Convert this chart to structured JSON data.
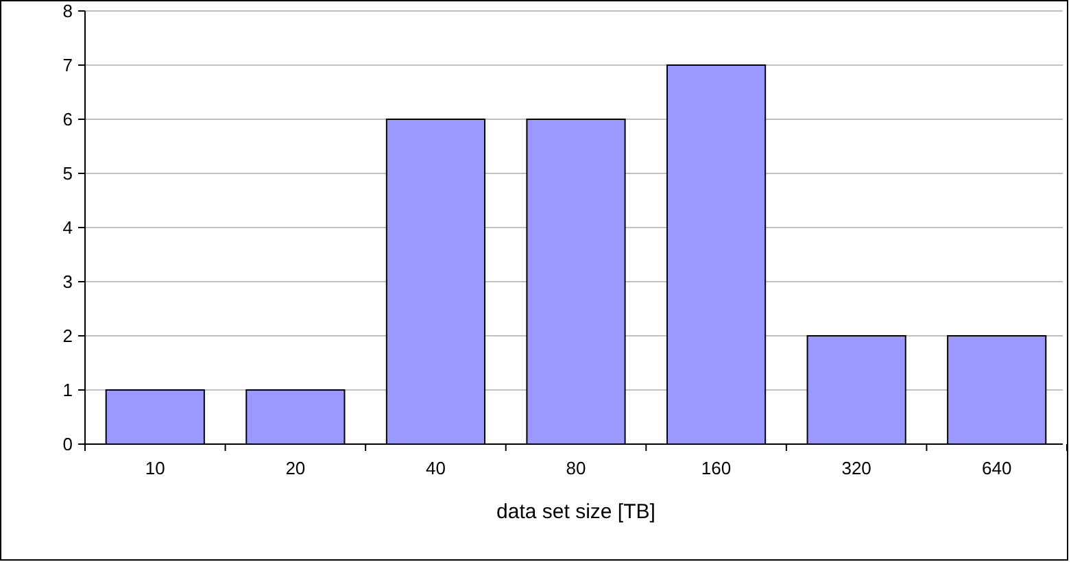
{
  "chart_data": {
    "type": "bar",
    "xlabel": "data set size [TB]",
    "categories": [
      "10",
      "20",
      "40",
      "80",
      "160",
      "320",
      "640"
    ],
    "values": [
      1,
      1,
      6,
      6,
      7,
      2,
      2
    ],
    "color": "#9999ff",
    "ylim": [
      0,
      8
    ],
    "yticks": [
      0,
      1,
      2,
      3,
      4,
      5,
      6,
      7,
      8
    ],
    "grid": "y"
  }
}
